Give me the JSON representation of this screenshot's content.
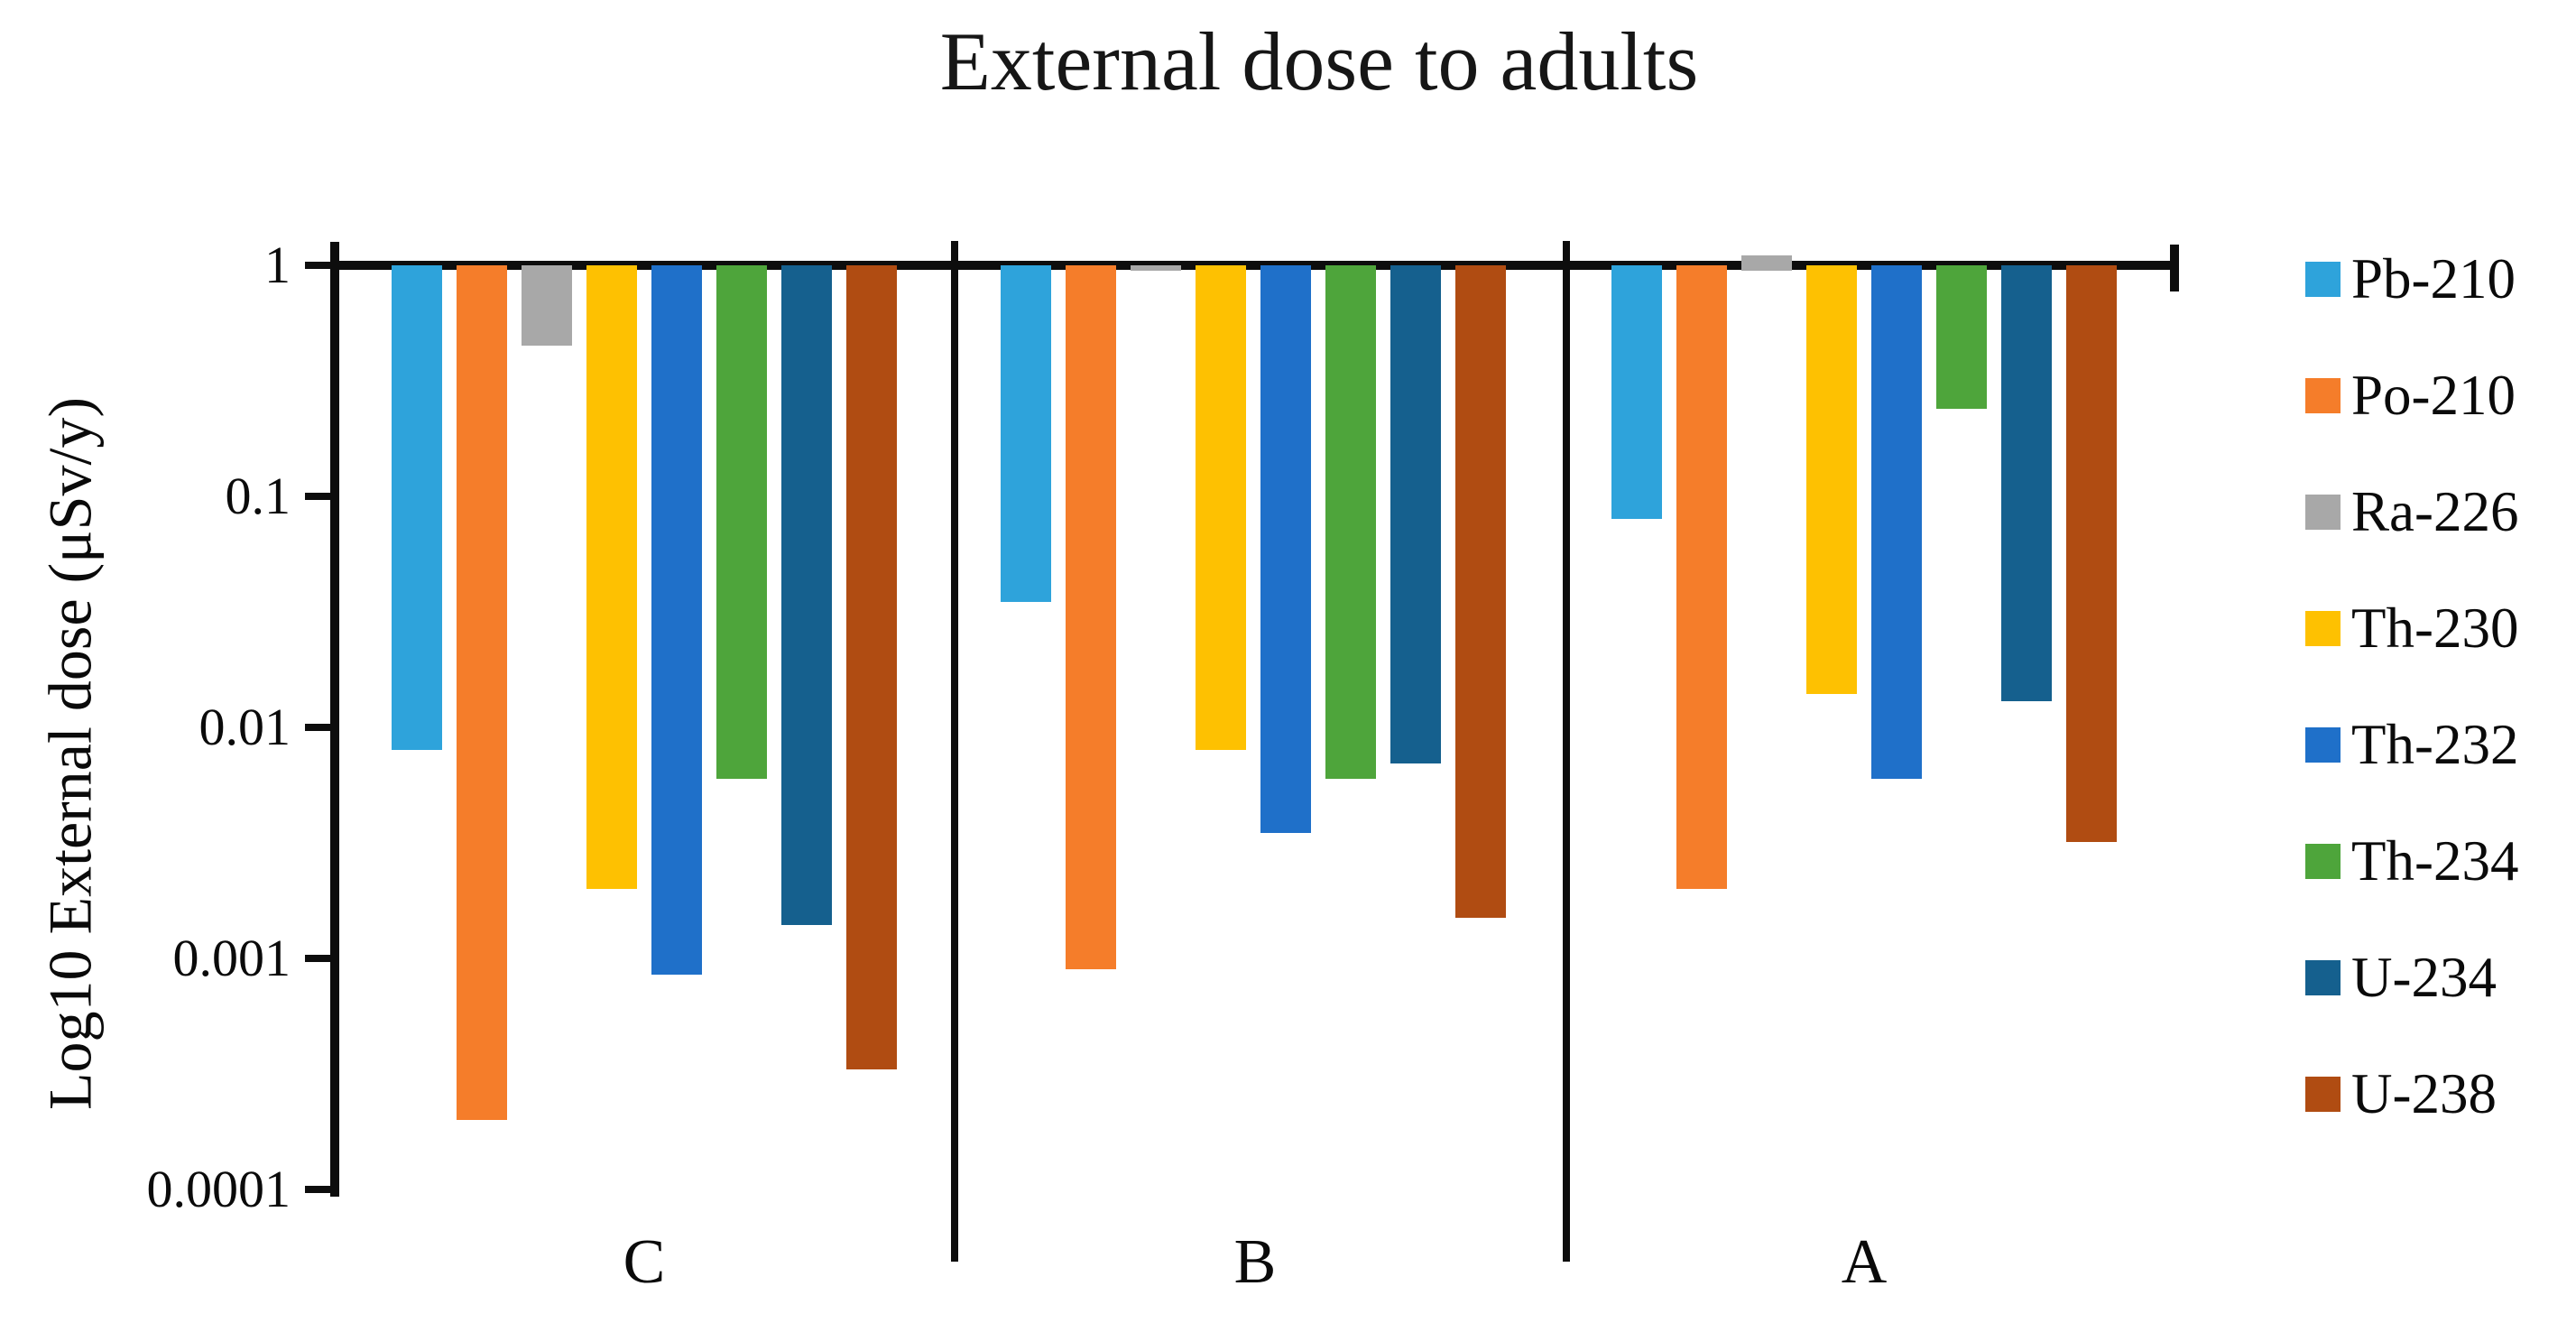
{
  "title": "External dose to adults",
  "y_axis": {
    "label": "Log10 External dose (μSv/y)",
    "tick_labels": [
      "1",
      "0.1",
      "0.01",
      "0.001",
      "0.0001"
    ]
  },
  "x_axis": {
    "group_labels": [
      "C",
      "B",
      "A"
    ]
  },
  "colors": {
    "axis": "#0d0d0d",
    "background": "#ffffff"
  },
  "chart_data": {
    "type": "bar",
    "title": "External dose to adults",
    "xlabel": "",
    "ylabel": "Log10 External dose (μSv/y)",
    "yscale": "log",
    "ylim": [
      0.0001,
      1
    ],
    "baseline": 1,
    "grid": false,
    "legend_position": "right",
    "bar_direction": "down-from-baseline-1",
    "categories": [
      "C",
      "B",
      "A"
    ],
    "series": [
      {
        "name": "Pb-210",
        "color": "#2EA3DB",
        "values": [
          0.008,
          0.035,
          0.08
        ]
      },
      {
        "name": "Po-210",
        "color": "#F57D2A",
        "values": [
          0.0002,
          0.0009,
          0.002
        ]
      },
      {
        "name": "Ra-226",
        "color": "#A8A8A8",
        "values": [
          0.45,
          0.95,
          1.1
        ]
      },
      {
        "name": "Th-230",
        "color": "#FEC101",
        "values": [
          0.002,
          0.008,
          0.014
        ]
      },
      {
        "name": "Th-232",
        "color": "#1F70C9",
        "values": [
          0.00085,
          0.0035,
          0.006
        ]
      },
      {
        "name": "Th-234",
        "color": "#4EA53B",
        "values": [
          0.006,
          0.006,
          0.24
        ]
      },
      {
        "name": "U-234",
        "color": "#15608E",
        "values": [
          0.0014,
          0.007,
          0.013
        ]
      },
      {
        "name": "U-238",
        "color": "#B04C12",
        "values": [
          0.00033,
          0.0015,
          0.0032
        ]
      }
    ]
  }
}
